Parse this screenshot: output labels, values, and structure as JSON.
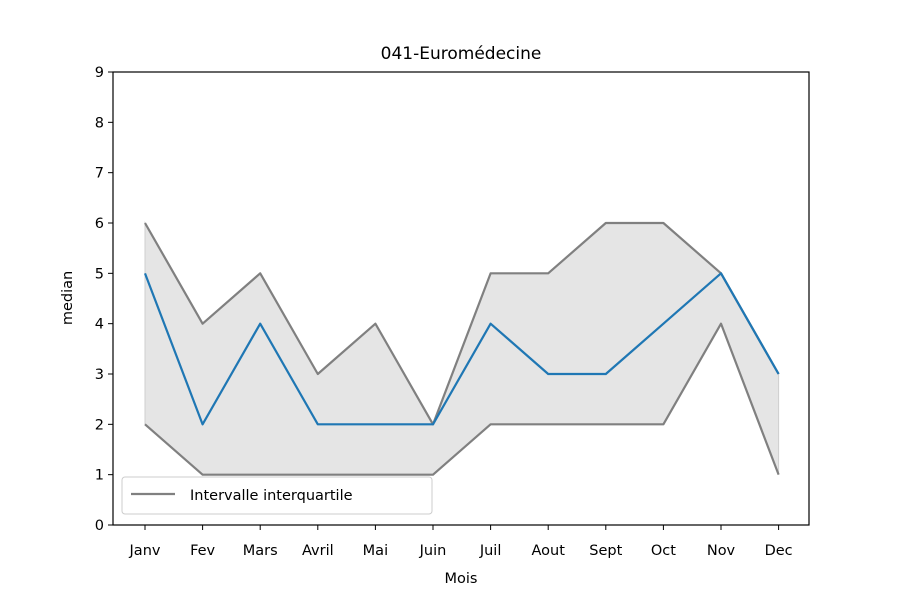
{
  "chart_data": {
    "type": "line",
    "title": "041-Euromédecine",
    "xlabel": "Mois",
    "ylabel": "median",
    "categories": [
      "Janv",
      "Fev",
      "Mars",
      "Avril",
      "Mai",
      "Juin",
      "Juil",
      "Aout",
      "Sept",
      "Oct",
      "Nov",
      "Dec"
    ],
    "ylim": [
      0,
      9
    ],
    "yticks": [
      "0",
      "1",
      "2",
      "3",
      "4",
      "5",
      "6",
      "7",
      "8",
      "9"
    ],
    "grid": false,
    "legend_position": "lower-left",
    "series": [
      {
        "key": "median",
        "values": [
          5,
          2,
          4,
          2,
          2,
          2,
          4,
          3,
          3,
          4,
          5,
          3
        ],
        "color": "#1f77b4"
      },
      {
        "key": "q3",
        "values": [
          6,
          4,
          5,
          3,
          4,
          2,
          5,
          5,
          6,
          6,
          5,
          3
        ],
        "color": "#808080"
      },
      {
        "key": "q1",
        "values": [
          2,
          1,
          1,
          1,
          1,
          1,
          2,
          2,
          2,
          2,
          4,
          1
        ],
        "color": "#808080"
      }
    ],
    "band": {
      "lower": "q1",
      "upper": "q3",
      "color": "#e5e5e5"
    },
    "legend": [
      {
        "label": "Intervalle interquartile",
        "color": "#808080"
      }
    ]
  }
}
